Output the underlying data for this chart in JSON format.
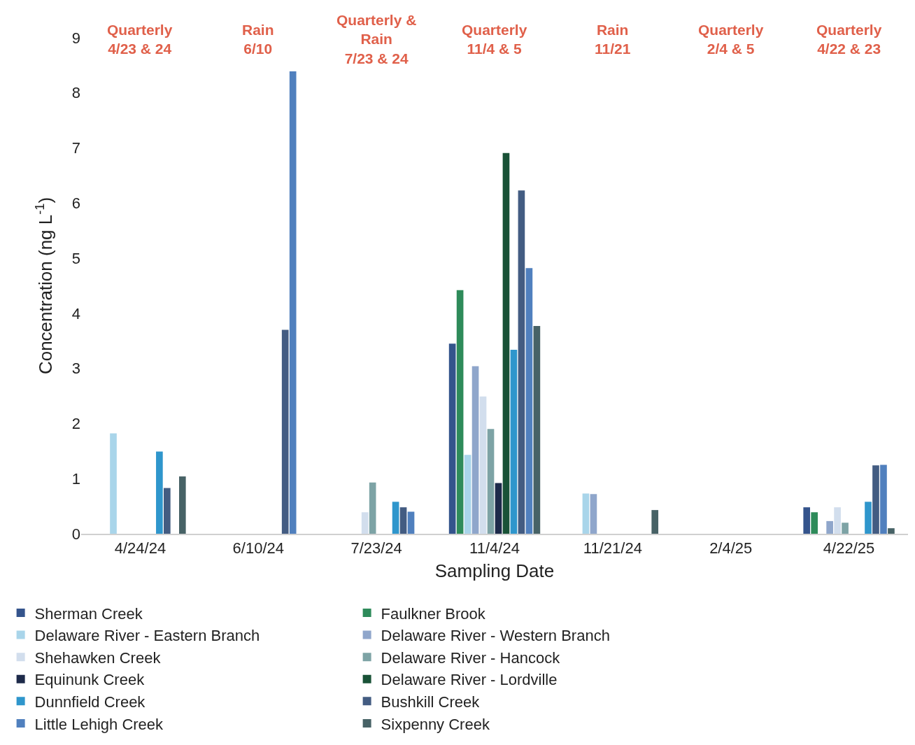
{
  "chart_data": {
    "type": "bar",
    "xlabel": "Sampling Date",
    "ylabel": "Concentration (ng L$^{-1}$)",
    "categories": [
      "4/24/24",
      "6/10/24",
      "7/23/24",
      "11/4/24",
      "11/21/24",
      "2/4/25",
      "4/22/25"
    ],
    "ylim": [
      0,
      9
    ],
    "yticks": [
      0,
      1,
      2,
      3,
      4,
      5,
      6,
      7,
      8,
      9
    ],
    "grid": false,
    "legend": "bottom",
    "annotations": [
      "Quarterly\n4/23 & 24",
      "Rain\n6/10",
      "Quarterly &\nRain\n7/23 & 24",
      "Quarterly\n11/4 & 5",
      "Rain\n11/21",
      "Quarterly\n2/4 & 5",
      "Quarterly\n4/22 & 23"
    ],
    "series": [
      {
        "name": "Sherman Creek",
        "color": "#34548c",
        "values": [
          null,
          null,
          null,
          3.45,
          null,
          null,
          0.48
        ]
      },
      {
        "name": "Faulkner Brook",
        "color": "#2e8b5a",
        "values": [
          null,
          null,
          null,
          4.42,
          null,
          null,
          0.39
        ]
      },
      {
        "name": "Delaware River - Eastern Branch",
        "color": "#a9d5ea",
        "values": [
          1.82,
          null,
          null,
          1.43,
          0.73,
          null,
          null
        ]
      },
      {
        "name": "Delaware River - Western Branch",
        "color": "#8fa6cb",
        "values": [
          null,
          null,
          null,
          3.04,
          0.72,
          null,
          0.23
        ]
      },
      {
        "name": "Shehawken Creek",
        "color": "#d2deed",
        "values": [
          null,
          null,
          0.39,
          2.49,
          null,
          null,
          0.48
        ]
      },
      {
        "name": "Delaware River - Hancock",
        "color": "#7da3a5",
        "values": [
          null,
          null,
          0.93,
          1.9,
          null,
          null,
          0.2
        ]
      },
      {
        "name": "Equinunk Creek",
        "color": "#1d2a4a",
        "values": [
          null,
          null,
          null,
          0.92,
          null,
          null,
          null
        ]
      },
      {
        "name": "Delaware River - Lordville",
        "color": "#195237",
        "values": [
          null,
          null,
          null,
          6.91,
          null,
          null,
          null
        ]
      },
      {
        "name": "Dunnfield Creek",
        "color": "#2f96cc",
        "values": [
          1.49,
          null,
          0.58,
          3.34,
          null,
          null,
          0.58
        ]
      },
      {
        "name": "Bushkill Creek",
        "color": "#435c82",
        "values": [
          0.83,
          3.7,
          0.48,
          6.23,
          null,
          null,
          1.24
        ]
      },
      {
        "name": "Little Lehigh Creek",
        "color": "#5080be",
        "values": [
          null,
          8.39,
          0.4,
          4.82,
          null,
          null,
          1.25
        ]
      },
      {
        "name": "Sixpenny Creek",
        "color": "#476266",
        "values": [
          1.04,
          null,
          null,
          3.77,
          0.43,
          null,
          0.1
        ]
      }
    ]
  }
}
